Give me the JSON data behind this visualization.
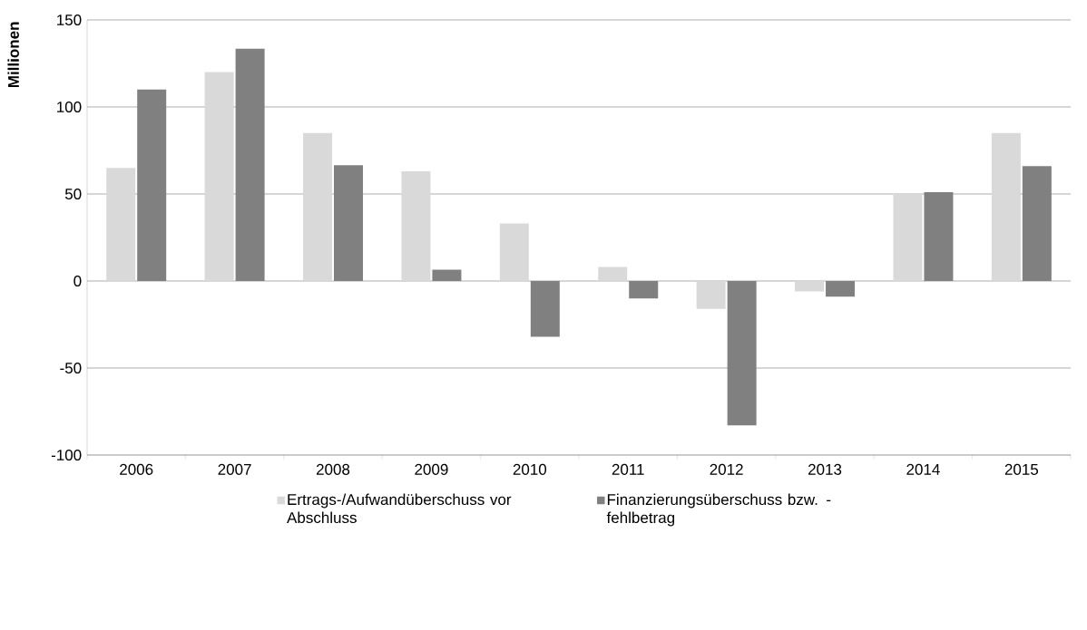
{
  "chart_data": {
    "type": "bar",
    "ylabel": "Millionen",
    "categories": [
      "2006",
      "2007",
      "2008",
      "2009",
      "2010",
      "2011",
      "2012",
      "2013",
      "2014",
      "2015"
    ],
    "series": [
      {
        "name": "Ertrags-/Aufwandüberschuss vor Abschluss",
        "color": "#d9d9d9",
        "values": [
          65,
          120,
          85,
          63,
          33,
          8,
          -16,
          -6,
          50,
          85
        ]
      },
      {
        "name": "Finanzierungsüberschuss bzw. -fehlbetrag",
        "color": "#808080",
        "values": [
          110,
          133.5,
          66.5,
          6.5,
          -32,
          -10,
          -83,
          -9,
          51,
          66
        ]
      }
    ],
    "ylim": [
      -100,
      150
    ],
    "yticks": [
      -100,
      -50,
      0,
      50,
      100,
      150
    ],
    "grid": "y",
    "legend": "bottom"
  }
}
